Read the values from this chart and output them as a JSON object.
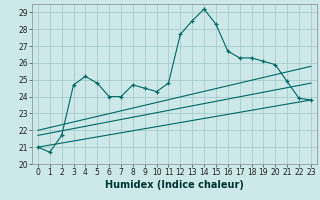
{
  "title": "",
  "xlabel": "Humidex (Indice chaleur)",
  "background_color": "#cce8e8",
  "grid_color": "#aacccc",
  "line_color": "#006666",
  "xlim": [
    -0.5,
    23.5
  ],
  "ylim": [
    20,
    29.5
  ],
  "yticks": [
    20,
    21,
    22,
    23,
    24,
    25,
    26,
    27,
    28,
    29
  ],
  "xticks": [
    0,
    1,
    2,
    3,
    4,
    5,
    6,
    7,
    8,
    9,
    10,
    11,
    12,
    13,
    14,
    15,
    16,
    17,
    18,
    19,
    20,
    21,
    22,
    23
  ],
  "series1_x": [
    0,
    1,
    2,
    3,
    4,
    5,
    6,
    7,
    8,
    9,
    10,
    11,
    12,
    13,
    14,
    15,
    16,
    17,
    18,
    19,
    20,
    21,
    22,
    23
  ],
  "series1_y": [
    21.0,
    20.7,
    21.7,
    24.7,
    25.2,
    24.8,
    24.0,
    24.0,
    24.7,
    24.5,
    24.3,
    24.8,
    27.7,
    28.5,
    29.2,
    28.3,
    26.7,
    26.3,
    26.3,
    26.1,
    25.9,
    24.9,
    23.9,
    23.8
  ],
  "series2_x": [
    0,
    23
  ],
  "series2_y": [
    21.0,
    23.8
  ],
  "series3_x": [
    0,
    23
  ],
  "series3_y": [
    21.7,
    24.8
  ],
  "series4_x": [
    0,
    23
  ],
  "series4_y": [
    22.0,
    25.8
  ]
}
